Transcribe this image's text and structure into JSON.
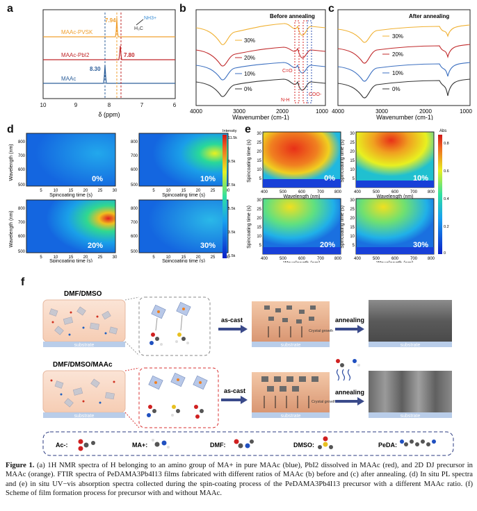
{
  "panels": {
    "a": {
      "label": "a",
      "xlabel": "δ (ppm)",
      "xticks": [
        "10",
        "9",
        "8",
        "7",
        "6"
      ],
      "structure_label": "NH3+",
      "traces": [
        {
          "name": "MAAc-PVSK",
          "color": "#f0a030",
          "peak_label": "7.94",
          "peak_ppm": 7.94
        },
        {
          "name": "MAAc-PbI2",
          "color": "#c0282a",
          "peak_label": "7.80",
          "peak_ppm": 7.8
        },
        {
          "name": "MAAc",
          "color": "#2d5f9a",
          "peak_label": "8.30",
          "peak_ppm": 8.3
        }
      ]
    },
    "b": {
      "label": "b",
      "title": "Before annealing",
      "xlabel": "Wavenumber (cm-1)",
      "xticks": [
        "4000",
        "3000",
        "2000",
        "1000"
      ],
      "series": [
        "30%",
        "20%",
        "10%",
        "0%"
      ],
      "annotations": [
        "C=O",
        "N-H",
        "COO-"
      ]
    },
    "c": {
      "label": "c",
      "title": "After annealing",
      "xlabel": "Wavenumber (cm-1)",
      "xticks": [
        "4000",
        "3000",
        "2000",
        "1000"
      ],
      "series": [
        "30%",
        "20%",
        "10%",
        "0%"
      ]
    },
    "d": {
      "label": "d",
      "ylabel": "Wavelength (nm)",
      "xlabel": "Spincoating time (s)",
      "yticks": [
        "800",
        "700",
        "600",
        "500"
      ],
      "xticks": [
        "5",
        "10",
        "15",
        "20",
        "25",
        "30"
      ],
      "maps": [
        "0%",
        "10%",
        "20%",
        "30%"
      ],
      "colorbar_title": "Intensity",
      "colorbar_ticks": [
        "11.5k",
        "9.5k",
        "7.5k",
        "5.5k",
        "3.5k",
        "1.5k"
      ]
    },
    "e": {
      "label": "e",
      "ylabel": "Spincoating time (s)",
      "xlabel": "Wavelength (nm)",
      "yticks": [
        "30",
        "25",
        "20",
        "15",
        "10",
        "5"
      ],
      "xticks": [
        "400",
        "500",
        "600",
        "700",
        "800"
      ],
      "maps": [
        "0%",
        "10%",
        "20%",
        "30%"
      ],
      "colorbar_title": "Abs",
      "colorbar_ticks": [
        "0.8",
        "0.6",
        "0.4",
        "0.2",
        "0"
      ]
    },
    "f": {
      "label": "f",
      "row1_title": "DMF/DMSO",
      "row2_title": "DMF/DMSO/MAAc",
      "substrate": "substrate",
      "as_cast": "as-cast",
      "annealing": "annealing",
      "crystal_growth": "Crystal growth",
      "legend": [
        {
          "label": "Ac-:"
        },
        {
          "label": "MA+:"
        },
        {
          "label": "DMF:"
        },
        {
          "label": "DMSO:"
        },
        {
          "label": "PeDA:"
        }
      ]
    }
  },
  "caption": {
    "lead": "Figure 1.",
    "text": "(a) 1H NMR spectra of H belonging to an amino group of MA+ in pure MAAc (blue), PbI2 dissolved in MAAc (red), and 2D DJ precursor in MAAc (orange). FTIR spectra of PeDAMA3Pb4I13 films fabricated with different ratios of MAAc (b) before and (c) after annealing. (d) In situ PL spectra and (e) in situ UV−vis absorption spectra collected during the spin-coating process of the PeDAMA3Pb4I13 precursor with a different MAAc ratio. (f) Scheme of film formation process for precursor with and without MAAc."
  }
}
